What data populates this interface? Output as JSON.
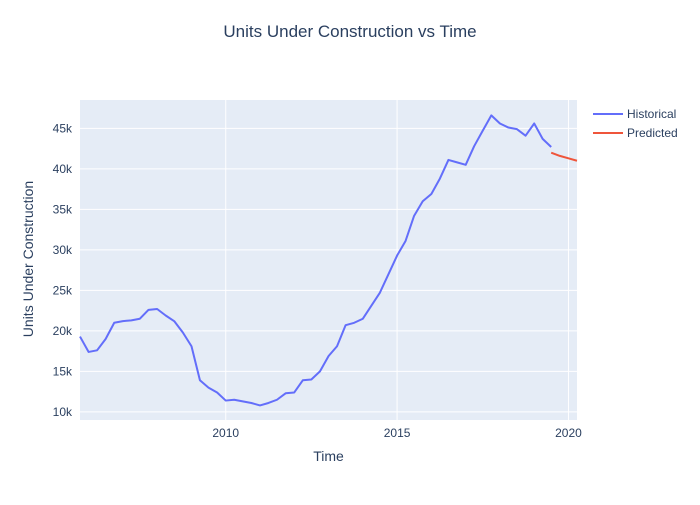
{
  "chart_data": {
    "type": "line",
    "title": "Units Under Construction vs Time",
    "xlabel": "Time",
    "ylabel": "Units Under Construction",
    "xlim": [
      "2005-10-01",
      "2020-04-01"
    ],
    "ylim": [
      9000,
      48500
    ],
    "x_ticks": [
      {
        "value": "2010-01-01",
        "label": "2010"
      },
      {
        "value": "2015-01-01",
        "label": "2015"
      },
      {
        "value": "2020-01-01",
        "label": "2020"
      }
    ],
    "y_ticks": [
      {
        "value": 10000,
        "label": "10k"
      },
      {
        "value": 15000,
        "label": "15k"
      },
      {
        "value": 20000,
        "label": "20k"
      },
      {
        "value": 25000,
        "label": "25k"
      },
      {
        "value": 30000,
        "label": "30k"
      },
      {
        "value": 35000,
        "label": "35k"
      },
      {
        "value": 40000,
        "label": "40k"
      },
      {
        "value": 45000,
        "label": "45k"
      }
    ],
    "grid": true,
    "legend_position": "top-right",
    "series": [
      {
        "name": "Historical",
        "color": "#636efa",
        "points": [
          [
            "2005-10-01",
            19300
          ],
          [
            "2006-01-01",
            17400
          ],
          [
            "2006-04-01",
            17600
          ],
          [
            "2006-07-01",
            19000
          ],
          [
            "2006-10-01",
            21000
          ],
          [
            "2007-01-01",
            21200
          ],
          [
            "2007-04-01",
            21300
          ],
          [
            "2007-07-01",
            21500
          ],
          [
            "2007-10-01",
            22600
          ],
          [
            "2008-01-01",
            22700
          ],
          [
            "2008-04-01",
            21900
          ],
          [
            "2008-07-01",
            21200
          ],
          [
            "2008-10-01",
            19800
          ],
          [
            "2009-01-01",
            18100
          ],
          [
            "2009-04-01",
            13900
          ],
          [
            "2009-07-01",
            13000
          ],
          [
            "2009-10-01",
            12400
          ],
          [
            "2010-01-01",
            11400
          ],
          [
            "2010-04-01",
            11500
          ],
          [
            "2010-07-01",
            11300
          ],
          [
            "2010-10-01",
            11100
          ],
          [
            "2011-01-01",
            10800
          ],
          [
            "2011-04-01",
            11100
          ],
          [
            "2011-07-01",
            11500
          ],
          [
            "2011-10-01",
            12300
          ],
          [
            "2012-01-01",
            12400
          ],
          [
            "2012-04-01",
            13900
          ],
          [
            "2012-07-01",
            14000
          ],
          [
            "2012-10-01",
            15000
          ],
          [
            "2013-01-01",
            16900
          ],
          [
            "2013-04-01",
            18100
          ],
          [
            "2013-07-01",
            20700
          ],
          [
            "2013-10-01",
            21000
          ],
          [
            "2014-01-01",
            21500
          ],
          [
            "2014-04-01",
            23100
          ],
          [
            "2014-07-01",
            24700
          ],
          [
            "2014-10-01",
            27000
          ],
          [
            "2015-01-01",
            29300
          ],
          [
            "2015-04-01",
            31100
          ],
          [
            "2015-07-01",
            34200
          ],
          [
            "2015-10-01",
            36000
          ],
          [
            "2016-01-01",
            36900
          ],
          [
            "2016-04-01",
            38800
          ],
          [
            "2016-07-01",
            41100
          ],
          [
            "2016-10-01",
            40800
          ],
          [
            "2017-01-01",
            40500
          ],
          [
            "2017-04-01",
            42800
          ],
          [
            "2017-07-01",
            44700
          ],
          [
            "2017-10-01",
            46600
          ],
          [
            "2018-01-01",
            45600
          ],
          [
            "2018-04-01",
            45100
          ],
          [
            "2018-07-01",
            44900
          ],
          [
            "2018-10-01",
            44100
          ],
          [
            "2019-01-01",
            45600
          ],
          [
            "2019-04-01",
            43700
          ],
          [
            "2019-07-01",
            42700
          ]
        ]
      },
      {
        "name": "Predicted",
        "color": "#ef553b",
        "points": [
          [
            "2019-07-01",
            42000
          ],
          [
            "2019-10-01",
            41600
          ],
          [
            "2020-01-01",
            41300
          ],
          [
            "2020-04-01",
            41000
          ]
        ]
      }
    ]
  }
}
